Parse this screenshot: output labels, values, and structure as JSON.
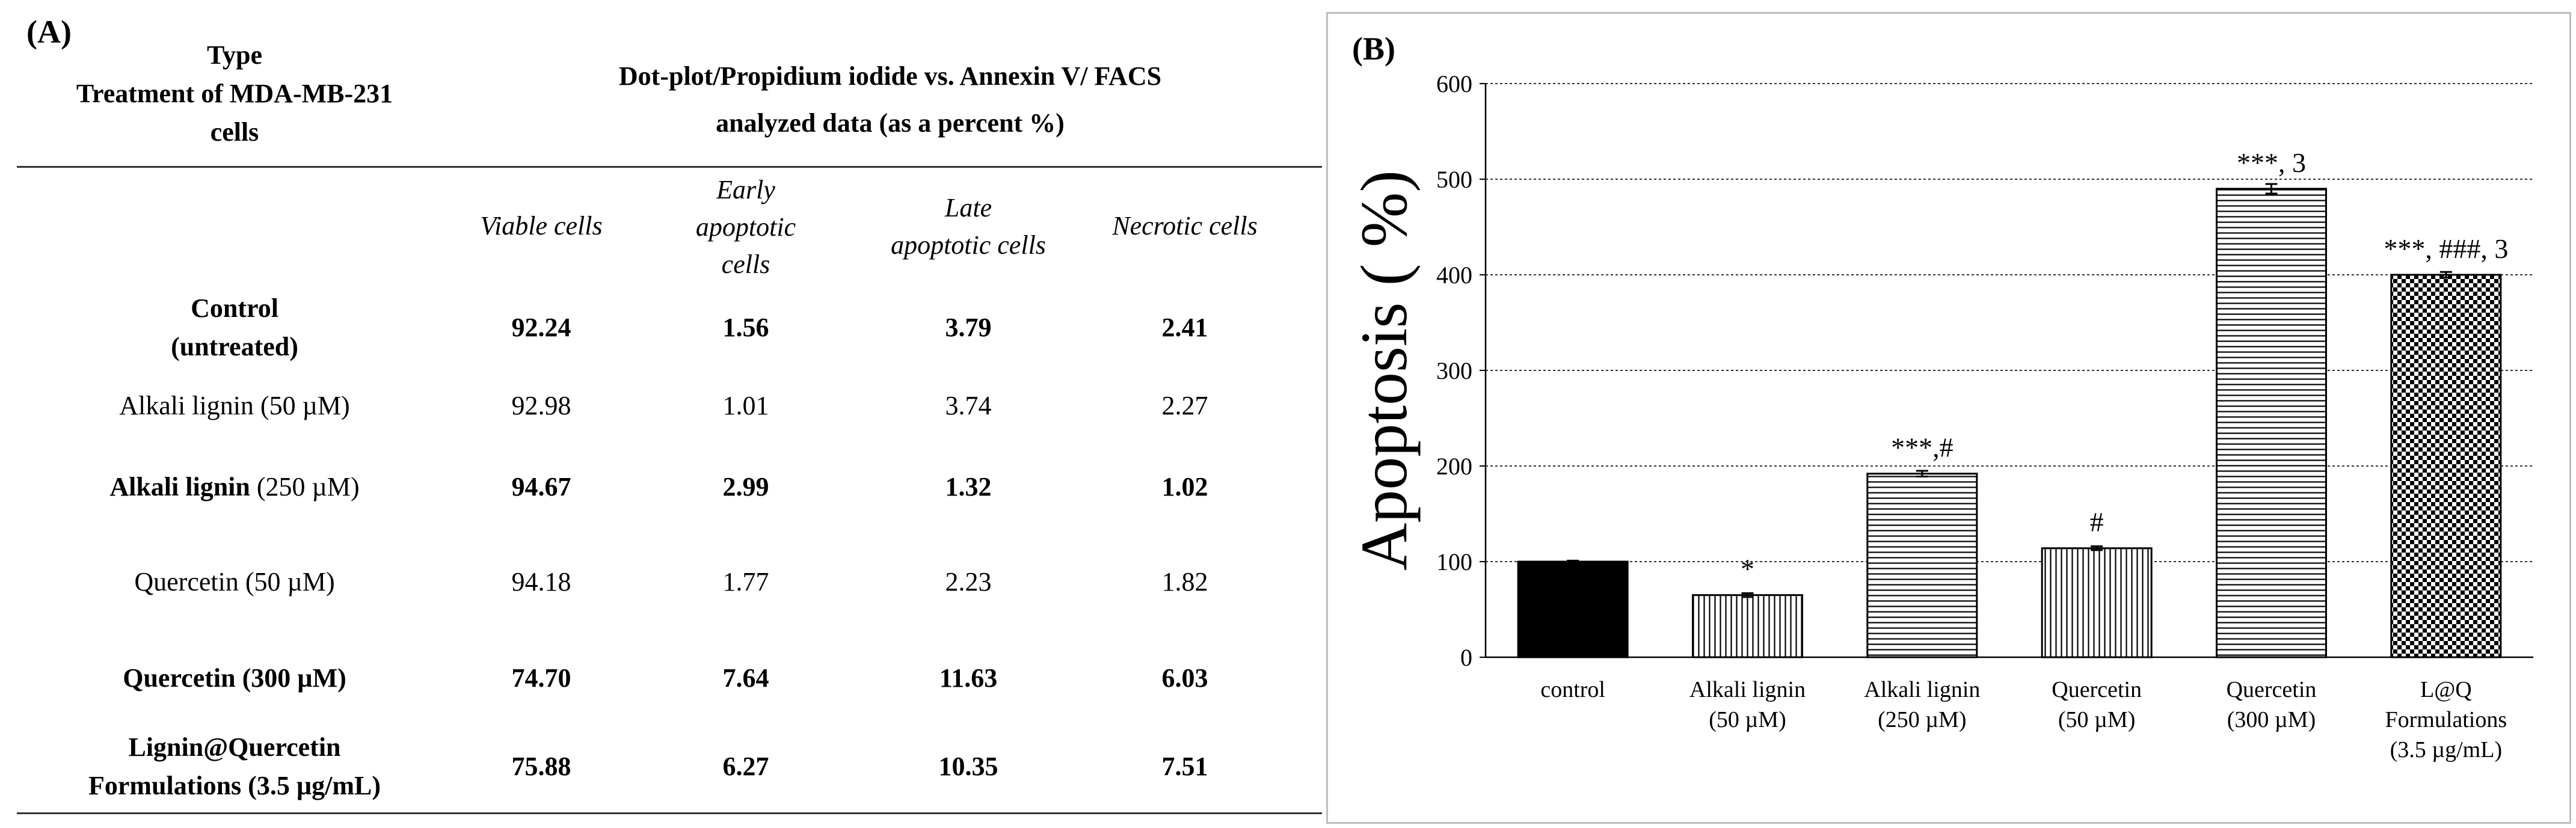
{
  "panel_a": {
    "label": "(A)",
    "header_type": [
      "Type",
      "Treatment of MDA-MB-231",
      "cells"
    ],
    "header_facs": [
      "Dot-plot/Propidium iodide vs. Annexin V/ FACS",
      "analyzed data (as a percent %)"
    ],
    "columns": [
      [
        "Viable cells"
      ],
      [
        "Early",
        "apoptotic",
        "cells"
      ],
      [
        "Late",
        "apoptotic cells"
      ],
      [
        "Necrotic cells"
      ]
    ],
    "rows": [
      {
        "name_bold": "Control",
        "name_rest": "",
        "name_line2": "(untreated)",
        "bold": true,
        "values": [
          "92.24",
          "1.56",
          "3.79",
          "2.41"
        ]
      },
      {
        "name_bold": "",
        "name_rest": "Alkali lignin (50 µM)",
        "name_line2": "",
        "bold": false,
        "values": [
          "92.98",
          "1.01",
          "3.74",
          "2.27"
        ]
      },
      {
        "name_bold": "Alkali lignin",
        "name_rest": " (250 µM)",
        "name_line2": "",
        "bold": true,
        "values": [
          "94.67",
          "2.99",
          "1.32",
          "1.02"
        ]
      },
      {
        "name_bold": "",
        "name_rest": "Quercetin (50 µM)",
        "name_line2": "",
        "bold": false,
        "values": [
          "94.18",
          "1.77",
          "2.23",
          "1.82"
        ]
      },
      {
        "name_bold": "Quercetin (300 µM)",
        "name_rest": "",
        "name_line2": "",
        "bold": true,
        "values": [
          "74.70",
          "7.64",
          "11.63",
          "6.03"
        ]
      },
      {
        "name_bold": "Lignin@Quercetin",
        "name_rest": "",
        "name_line2": "Formulations (3.5 µg/mL)",
        "bold": true,
        "values": [
          "75.88",
          "6.27",
          "10.35",
          "7.51"
        ]
      }
    ]
  },
  "panel_b": {
    "label": "(B)",
    "chart_data": {
      "type": "bar",
      "title": "",
      "xlabel": "",
      "ylabel": "Apoptosis ( %)",
      "ylim": [
        0,
        600
      ],
      "yticks": [
        0,
        100,
        200,
        300,
        400,
        500,
        600
      ],
      "grid": true,
      "categories": [
        [
          "control"
        ],
        [
          "Alkali lignin",
          "(50 µM)"
        ],
        [
          "Alkali lignin",
          "(250 µM)"
        ],
        [
          "Quercetin",
          "(50 µM)"
        ],
        [
          "Quercetin",
          "(300 µM)"
        ],
        [
          "L@Q",
          "Formulations",
          "(3.5 µg/mL)"
        ]
      ],
      "values": [
        100,
        65,
        192,
        114,
        490,
        400
      ],
      "errors": [
        1,
        2,
        3,
        2,
        5,
        3
      ],
      "patterns": [
        "solid",
        "vertical",
        "horizontal",
        "vertical",
        "horizontal",
        "checker"
      ],
      "annotations": [
        "",
        "*",
        "***,#",
        "#",
        "***, 3",
        "***, ###, 3"
      ]
    }
  }
}
